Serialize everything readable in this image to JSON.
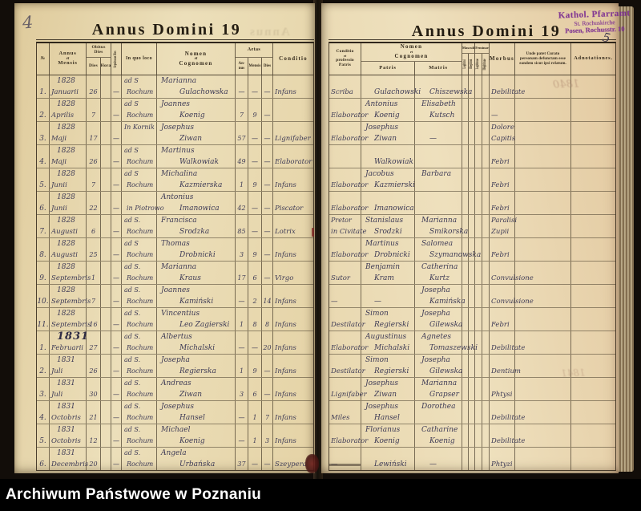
{
  "archive_bar": {
    "label": "Archiwum Państwowe w Poznaniu"
  },
  "stamp": {
    "line1": "Kathol. Pfarramt",
    "line2": "St. Rochuskirche",
    "line3": "Posen, Rochusstr. 10",
    "color": "#7c2f92"
  },
  "marginalia": {
    "left_page_number": "4",
    "right_page_number": "5",
    "ghost_year_top": "1840",
    "ghost_year_mid": "1841",
    "ghost_title": "Annus"
  },
  "left_page": {
    "title": "Annus Domini 19",
    "header": {
      "no": "№",
      "annus_mensis": [
        "Annus",
        "et",
        "Mensis"
      ],
      "obitus_dies": [
        "Obitus",
        "Dies"
      ],
      "dies": "Dies",
      "hora": "Hora",
      "sepulturae_dies": "Sepulturae Dies",
      "in_quo_loco": "In quo loco",
      "nomen": [
        "Nomen",
        "et",
        "Cognomen"
      ],
      "aetas": "Aetas",
      "aetas_annus": [
        "An-",
        "nus"
      ],
      "aetas_mensis": "Mensis",
      "aetas_dies": "Dies",
      "conditio": "Conditio"
    },
    "rows": [
      {
        "no": "1.",
        "year": "1828",
        "month": "Januarii",
        "dies": "26",
        "hora": "",
        "sep": "—",
        "loco1": "ad S",
        "loco2": "Rochum",
        "name1": "Marianna",
        "name2": "Gulachowska",
        "aa": "—",
        "am": "—",
        "ad": "—",
        "cond": "Infans"
      },
      {
        "no": "2.",
        "year": "1828",
        "month": "Aprilis",
        "dies": "7",
        "hora": "",
        "sep": "—",
        "loco1": "ad S",
        "loco2": "Rochum",
        "name1": "Joannes",
        "name2": "Koenig",
        "aa": "7",
        "am": "9",
        "ad": "—",
        "cond": ""
      },
      {
        "no": "3.",
        "year": "1828",
        "month": "Maji",
        "dies": "17",
        "hora": "",
        "sep": "—",
        "loco1": "In Kornik",
        "loco2": "",
        "name1": "Josephus",
        "name2": "Ziwan",
        "aa": "57",
        "am": "—",
        "ad": "—",
        "cond": "Lignifaber"
      },
      {
        "no": "4.",
        "year": "1828",
        "month": "Maji",
        "dies": "26",
        "hora": "",
        "sep": "—",
        "loco1": "ad S",
        "loco2": "Rochum",
        "name1": "Martinus",
        "name2": "Walkowiak",
        "aa": "49",
        "am": "—",
        "ad": "—",
        "cond": "Elaborator"
      },
      {
        "no": "5.",
        "year": "1828",
        "month": "Junii",
        "dies": "7",
        "hora": "",
        "sep": "—",
        "loco1": "ad S",
        "loco2": "Rochum",
        "name1": "Michalina",
        "name2": "Kazmierska",
        "aa": "1",
        "am": "9",
        "ad": "—",
        "cond": "Infans"
      },
      {
        "no": "6.",
        "year": "1828",
        "month": "Junii",
        "dies": "22",
        "hora": "",
        "sep": "—",
        "loco1": "",
        "loco2": "in Piotrowo",
        "name1": "Antonius",
        "name2": "Imanowica",
        "aa": "42",
        "am": "—",
        "ad": "—",
        "cond": "Piscator"
      },
      {
        "no": "7.",
        "year": "1828",
        "month": "Augusti",
        "dies": "6",
        "hora": "",
        "sep": "—",
        "loco1": "ad S.",
        "loco2": "Rochum",
        "name1": "Francisca",
        "name2": "Srodzka",
        "aa": "85",
        "am": "—",
        "ad": "—",
        "cond": "Lotrix"
      },
      {
        "no": "8.",
        "year": "1828",
        "month": "Augusti",
        "dies": "25",
        "hora": "",
        "sep": "—",
        "loco1": "ad S",
        "loco2": "Rochum",
        "name1": "Thomas",
        "name2": "Drobnicki",
        "aa": "3",
        "am": "9",
        "ad": "—",
        "cond": "Infans"
      },
      {
        "no": "9.",
        "year": "1828",
        "month": "Septembris",
        "dies": "1",
        "hora": "",
        "sep": "—",
        "loco1": "ad S.",
        "loco2": "Rochum",
        "name1": "Marianna",
        "name2": "Kraus",
        "aa": "17",
        "am": "6",
        "ad": "—",
        "cond": "Virgo"
      },
      {
        "no": "10.",
        "year": "1828",
        "month": "Septembris",
        "dies": "7",
        "hora": "",
        "sep": "—",
        "loco1": "ad S.",
        "loco2": "Rochum",
        "name1": "Joannes",
        "name2": "Kamiński",
        "aa": "—",
        "am": "2",
        "ad": "14",
        "cond": "Infans"
      },
      {
        "no": "11.",
        "year": "1828",
        "month": "Septembris",
        "dies": "16",
        "hora": "",
        "sep": "—",
        "loco1": "ad S.",
        "loco2": "Rochum",
        "name1": "Vincentius",
        "name2": "Leo Zagierski",
        "aa": "1",
        "am": "8",
        "ad": "8",
        "cond": "Infans"
      },
      {
        "no": "1.",
        "year": "1831",
        "em": true,
        "month": "Februarii",
        "dies": "27",
        "hora": "",
        "sep": "—",
        "loco1": "ad S.",
        "loco2": "Rochum",
        "name1": "Albertus",
        "name2": "Michalski",
        "aa": "—",
        "am": "—",
        "ad": "20",
        "cond": "Infans"
      },
      {
        "no": "2.",
        "year": "1831",
        "month": "Juli",
        "dies": "26",
        "hora": "",
        "sep": "—",
        "loco1": "ad S.",
        "loco2": "Rochum",
        "name1": "Josepha",
        "name2": "Regierska",
        "aa": "1",
        "am": "9",
        "ad": "—",
        "cond": "Infans"
      },
      {
        "no": "3.",
        "year": "1831",
        "month": "Juli",
        "dies": "30",
        "hora": "",
        "sep": "—",
        "loco1": "ad S.",
        "loco2": "Rochum",
        "name1": "Andreas",
        "name2": "Ziwan",
        "aa": "3",
        "am": "6",
        "ad": "—",
        "cond": "Infans"
      },
      {
        "no": "4.",
        "year": "1831",
        "month": "Octobris",
        "dies": "21",
        "hora": "",
        "sep": "—",
        "loco1": "ad S.",
        "loco2": "Rochum",
        "name1": "Josephus",
        "name2": "Hansel",
        "aa": "—",
        "am": "1",
        "ad": "7",
        "cond": "Infans"
      },
      {
        "no": "5.",
        "year": "1831",
        "month": "Octobris",
        "dies": "12",
        "hora": "",
        "sep": "—",
        "loco1": "ad S.",
        "loco2": "Rochum",
        "name1": "Michael",
        "name2": "Koenig",
        "aa": "—",
        "am": "1",
        "ad": "3",
        "cond": "Infans"
      },
      {
        "no": "6.",
        "year": "1831",
        "month": "Decembris",
        "dies": "20",
        "hora": "",
        "sep": "—",
        "loco1": "ad S.",
        "loco2": "Rochum",
        "name1": "Angela",
        "name2": "Urbańska",
        "aa": "37",
        "am": "—",
        "ad": "—",
        "cond": "Szeypera"
      }
    ]
  },
  "right_page": {
    "title": "Annus Domini 19",
    "header": {
      "conditio_patris": [
        "Conditio",
        "et",
        "professio",
        "Patris"
      ],
      "nomen": [
        "Nomen",
        "et",
        "Cognomen"
      ],
      "patris": "Patris",
      "matris": "Matris",
      "masculi": "Masculi",
      "feminae": "Feminae",
      "legitimi": "Legitimi",
      "illegitimi": "Illegitimi",
      "legitimae": "Legitimae",
      "illegitimae": "Illegitimae",
      "morbus": "Morbus",
      "unde": "Unde patet Curato personam defunctam esse eandem sicut ipsi relatum.",
      "adnotationes": "Adnotationes."
    },
    "rows": [
      {
        "c1": "",
        "c2": "Scriba",
        "p1": "",
        "p2": "Gulachowski",
        "m1": "",
        "m2": "Chiszewska",
        "mo1": "",
        "mo2": "Debilitate"
      },
      {
        "c1": "",
        "c2": "Elaborator",
        "p1": "Antonius",
        "p2": "Koenig",
        "m1": "Elisabeth",
        "m2": "Kutsch",
        "mo1": "",
        "mo2": "—"
      },
      {
        "c1": "",
        "c2": "Elaborator",
        "p1": "Josephus",
        "p2": "Ziwan",
        "m1": "",
        "m2": "—",
        "mo1": "Dolore",
        "mo2": "Capitis"
      },
      {
        "c1": "",
        "c2": "",
        "p1": "",
        "p2": "Walkowiak",
        "m1": "",
        "m2": "",
        "mo1": "",
        "mo2": "Febri"
      },
      {
        "c1": "",
        "c2": "Elaborator",
        "p1": "Jacobus",
        "p2": "Kazmierski",
        "m1": "Barbara",
        "m2": "",
        "mo1": "",
        "mo2": "Febri"
      },
      {
        "c1": "",
        "c2": "Elaborator",
        "p1": "",
        "p2": "Imanowica",
        "m1": "",
        "m2": "",
        "mo1": "",
        "mo2": "Febri"
      },
      {
        "c1": "Pretor",
        "c2": "in Civitate",
        "p1": "Stanislaus",
        "p2": "Srodzki",
        "m1": "Marianna",
        "m2": "Smikorska",
        "mo1": "Paralisi",
        "mo2": "Zupii"
      },
      {
        "c1": "",
        "c2": "Elaborator",
        "p1": "Martinus",
        "p2": "Drobnicki",
        "m1": "Salomea",
        "m2": "Szymanowska",
        "mo1": "",
        "mo2": "Febri"
      },
      {
        "c1": "",
        "c2": "Sutor",
        "p1": "Benjamin",
        "p2": "Kram",
        "m1": "Catherina",
        "m2": "Kurtz",
        "mo1": "",
        "mo2": "Convulsione"
      },
      {
        "c1": "",
        "c2": "—",
        "p1": "",
        "p2": "—",
        "m1": "Josepha",
        "m2": "Kamińska",
        "mo1": "",
        "mo2": "Convulsione"
      },
      {
        "c1": "",
        "c2": "Destilator",
        "p1": "Simon",
        "p2": "Regierski",
        "m1": "Josepha",
        "m2": "Gilewska",
        "mo1": "",
        "mo2": "Febri"
      },
      {
        "c1": "",
        "c2": "Elaborator",
        "p1": "Augustinus",
        "p2": "Michalski",
        "m1": "Agnetes",
        "m2": "Tomaszewski",
        "mo1": "",
        "mo2": "Debilitate"
      },
      {
        "c1": "",
        "c2": "Destilator",
        "p1": "Simon",
        "p2": "Regierski",
        "m1": "Josepha",
        "m2": "Gilewska",
        "mo1": "",
        "mo2": "Dentium"
      },
      {
        "c1": "",
        "c2": "Lignifaber",
        "p1": "Josephus",
        "p2": "Ziwan",
        "m1": "Marianna",
        "m2": "Grapser",
        "mo1": "",
        "mo2": "Phtysi"
      },
      {
        "c1": "",
        "c2": "Miles",
        "p1": "Josephus",
        "p2": "Hansel",
        "m1": "Dorothea",
        "m2": "",
        "mo1": "",
        "mo2": "Debilitate"
      },
      {
        "c1": "",
        "c2": "Elaborator",
        "p1": "Florianus",
        "p2": "Koenig",
        "m1": "Catharine",
        "m2": "Koenig",
        "mo1": "",
        "mo2": "Debilitate"
      },
      {
        "c1": "",
        "c2": "—",
        "p1": "",
        "p2": "Lewiński",
        "m1": "",
        "m2": "—",
        "mo1": "",
        "mo2": "Phtyzi"
      }
    ]
  }
}
